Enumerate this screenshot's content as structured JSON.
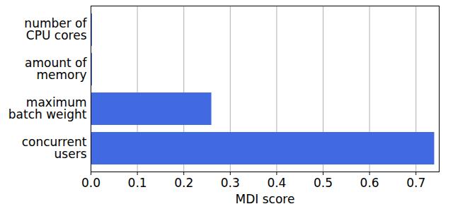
{
  "chart_data": {
    "type": "bar",
    "orientation": "horizontal",
    "categories": [
      "number of\nCPU cores",
      "amount of\nmemory",
      "maximum\nbatch weight",
      "concurrent\nusers"
    ],
    "values": [
      0.003,
      0.003,
      0.26,
      0.74
    ],
    "color": "#4169e1",
    "xlabel": "MDI score",
    "xlim": [
      0,
      0.75
    ],
    "xticks": [
      {
        "value": 0,
        "label": "0.0"
      },
      {
        "value": 0.1,
        "label": "0.1"
      },
      {
        "value": 0.2,
        "label": "0.2"
      },
      {
        "value": 0.3,
        "label": "0.3"
      },
      {
        "value": 0.4,
        "label": "0.4"
      },
      {
        "value": 0.5,
        "label": "0.5"
      },
      {
        "value": 0.6,
        "label": "0.6"
      },
      {
        "value": 0.7,
        "label": "0.7"
      }
    ],
    "grid": true
  }
}
